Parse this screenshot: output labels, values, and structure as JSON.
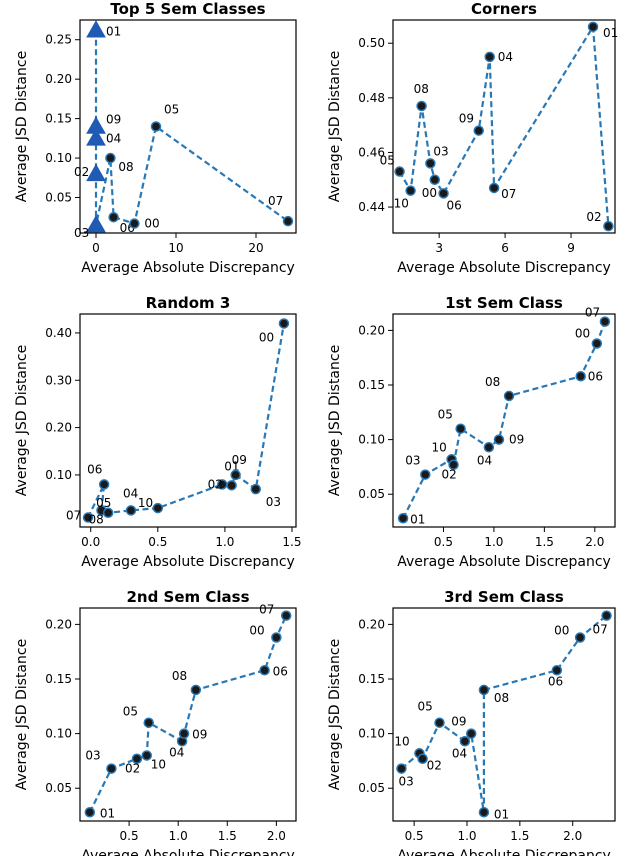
{
  "chart_data": [
    {
      "type": "line",
      "title": "Top 5 Sem Classes",
      "xlabel": "Average Absolute Discrepancy",
      "ylabel": "Average JSD Distance",
      "xlim": [
        -2,
        25
      ],
      "ylim": [
        0.005,
        0.275
      ],
      "xticks": [
        0,
        10,
        20
      ],
      "yticks": [
        0.05,
        0.1,
        0.15,
        0.2,
        0.25
      ],
      "ytick_labels": [
        "0.05",
        "0.10",
        "0.15",
        "0.20",
        "0.25"
      ],
      "points": [
        {
          "label": "01",
          "x": 0.0,
          "y": 0.262,
          "marker": "triangle"
        },
        {
          "label": "09",
          "x": 0.0,
          "y": 0.14,
          "marker": "triangle"
        },
        {
          "label": "04",
          "x": 0.0,
          "y": 0.125,
          "marker": "triangle"
        },
        {
          "label": "02",
          "x": 0.0,
          "y": 0.08,
          "marker": "triangle"
        },
        {
          "label": "03",
          "x": 0.0,
          "y": 0.015,
          "marker": "triangle"
        },
        {
          "label": "08",
          "x": 1.8,
          "y": 0.1,
          "marker": "circle"
        },
        {
          "label": "06",
          "x": 2.2,
          "y": 0.025,
          "marker": "circle"
        },
        {
          "label": "00",
          "x": 4.8,
          "y": 0.017,
          "marker": "circle"
        },
        {
          "label": "05",
          "x": 7.5,
          "y": 0.14,
          "marker": "circle"
        },
        {
          "label": "07",
          "x": 24.0,
          "y": 0.02,
          "marker": "circle"
        }
      ],
      "path": [
        "01",
        "09",
        "04",
        "02",
        "03",
        "08",
        "06",
        "00",
        "05",
        "07"
      ]
    },
    {
      "type": "line",
      "title": "Corners",
      "xlabel": "Average Absolute Discrepancy",
      "ylabel": "Average JSD Distance",
      "xlim": [
        0.9,
        11.0
      ],
      "ylim": [
        0.4305,
        0.5085
      ],
      "xticks": [
        3,
        6,
        9
      ],
      "yticks": [
        0.44,
        0.46,
        0.48,
        0.5
      ],
      "ytick_labels": [
        "0.44",
        "0.46",
        "0.48",
        "0.50"
      ],
      "points": [
        {
          "label": "05",
          "x": 1.2,
          "y": 0.453,
          "marker": "circle"
        },
        {
          "label": "10",
          "x": 1.7,
          "y": 0.446,
          "marker": "circle"
        },
        {
          "label": "08",
          "x": 2.2,
          "y": 0.477,
          "marker": "circle"
        },
        {
          "label": "03",
          "x": 2.6,
          "y": 0.456,
          "marker": "circle"
        },
        {
          "label": "00",
          "x": 2.8,
          "y": 0.45,
          "marker": "circle"
        },
        {
          "label": "06",
          "x": 3.2,
          "y": 0.445,
          "marker": "circle"
        },
        {
          "label": "09",
          "x": 4.8,
          "y": 0.468,
          "marker": "circle"
        },
        {
          "label": "04",
          "x": 5.3,
          "y": 0.495,
          "marker": "circle"
        },
        {
          "label": "07",
          "x": 5.5,
          "y": 0.447,
          "marker": "circle"
        },
        {
          "label": "01",
          "x": 10.0,
          "y": 0.506,
          "marker": "circle"
        },
        {
          "label": "02",
          "x": 10.7,
          "y": 0.433,
          "marker": "circle"
        }
      ],
      "path": [
        "05",
        "10",
        "08",
        "03",
        "00",
        "06",
        "09",
        "04",
        "07",
        "01",
        "02"
      ]
    },
    {
      "type": "line",
      "title": "Random 3",
      "xlabel": "Average Absolute Discrepancy",
      "ylabel": "Average JSD Distance",
      "xlim": [
        -0.08,
        1.53
      ],
      "ylim": [
        -0.01,
        0.44
      ],
      "xticks": [
        0.0,
        0.5,
        1.0,
        1.5
      ],
      "xtick_labels": [
        "0.0",
        "0.5",
        "1.0",
        "1.5"
      ],
      "yticks": [
        0.1,
        0.2,
        0.3,
        0.4
      ],
      "ytick_labels": [
        "0.10",
        "0.20",
        "0.30",
        "0.40"
      ],
      "points": [
        {
          "label": "07",
          "x": -0.02,
          "y": 0.01,
          "marker": "circle"
        },
        {
          "label": "06",
          "x": 0.1,
          "y": 0.08,
          "marker": "circle"
        },
        {
          "label": "08",
          "x": 0.08,
          "y": 0.025,
          "marker": "circle"
        },
        {
          "label": "05",
          "x": 0.13,
          "y": 0.02,
          "marker": "circle"
        },
        {
          "label": "04",
          "x": 0.3,
          "y": 0.025,
          "marker": "circle"
        },
        {
          "label": "10",
          "x": 0.5,
          "y": 0.03,
          "marker": "circle"
        },
        {
          "label": "01",
          "x": 0.98,
          "y": 0.08,
          "marker": "circle"
        },
        {
          "label": "02",
          "x": 1.05,
          "y": 0.078,
          "marker": "circle"
        },
        {
          "label": "09",
          "x": 1.08,
          "y": 0.1,
          "marker": "circle"
        },
        {
          "label": "03",
          "x": 1.23,
          "y": 0.07,
          "marker": "circle"
        },
        {
          "label": "00",
          "x": 1.44,
          "y": 0.42,
          "marker": "circle"
        }
      ],
      "path": [
        "07",
        "06",
        "08",
        "05",
        "04",
        "10",
        "01",
        "02",
        "09",
        "03",
        "00"
      ]
    },
    {
      "type": "line",
      "title": "1st Sem Class",
      "xlabel": "Average Absolute Discrepancy",
      "ylabel": "Average JSD Distance",
      "xlim": [
        0.0,
        2.2
      ],
      "ylim": [
        0.02,
        0.215
      ],
      "xticks": [
        0.5,
        1.0,
        1.5,
        2.0
      ],
      "xtick_labels": [
        "0.5",
        "1.0",
        "1.5",
        "2.0"
      ],
      "yticks": [
        0.05,
        0.1,
        0.15,
        0.2
      ],
      "ytick_labels": [
        "0.05",
        "0.10",
        "0.15",
        "0.20"
      ],
      "points": [
        {
          "label": "01",
          "x": 0.1,
          "y": 0.028,
          "marker": "circle"
        },
        {
          "label": "03",
          "x": 0.32,
          "y": 0.068,
          "marker": "circle"
        },
        {
          "label": "10",
          "x": 0.58,
          "y": 0.082,
          "marker": "circle"
        },
        {
          "label": "02",
          "x": 0.6,
          "y": 0.077,
          "marker": "circle"
        },
        {
          "label": "05",
          "x": 0.67,
          "y": 0.11,
          "marker": "circle"
        },
        {
          "label": "04",
          "x": 0.95,
          "y": 0.093,
          "marker": "circle"
        },
        {
          "label": "09",
          "x": 1.05,
          "y": 0.1,
          "marker": "circle"
        },
        {
          "label": "08",
          "x": 1.15,
          "y": 0.14,
          "marker": "circle"
        },
        {
          "label": "06",
          "x": 1.86,
          "y": 0.158,
          "marker": "circle"
        },
        {
          "label": "00",
          "x": 2.02,
          "y": 0.188,
          "marker": "circle"
        },
        {
          "label": "07",
          "x": 2.1,
          "y": 0.208,
          "marker": "circle"
        }
      ],
      "path": [
        "01",
        "03",
        "10",
        "02",
        "05",
        "04",
        "09",
        "08",
        "06",
        "00",
        "07"
      ]
    },
    {
      "type": "line",
      "title": "2nd Sem Class",
      "xlabel": "Average Absolute Discrepancy",
      "ylabel": "Average JSD Distance",
      "xlim": [
        0.0,
        2.2
      ],
      "ylim": [
        0.02,
        0.215
      ],
      "xticks": [
        0.5,
        1.0,
        1.5,
        2.0
      ],
      "xtick_labels": [
        "0.5",
        "1.0",
        "1.5",
        "2.0"
      ],
      "yticks": [
        0.05,
        0.1,
        0.15,
        0.2
      ],
      "ytick_labels": [
        "0.05",
        "0.10",
        "0.15",
        "0.20"
      ],
      "points": [
        {
          "label": "01",
          "x": 0.1,
          "y": 0.028,
          "marker": "circle"
        },
        {
          "label": "03",
          "x": 0.32,
          "y": 0.068,
          "marker": "circle"
        },
        {
          "label": "02",
          "x": 0.58,
          "y": 0.077,
          "marker": "circle"
        },
        {
          "label": "10",
          "x": 0.68,
          "y": 0.08,
          "marker": "circle"
        },
        {
          "label": "05",
          "x": 0.7,
          "y": 0.11,
          "marker": "circle"
        },
        {
          "label": "04",
          "x": 1.04,
          "y": 0.093,
          "marker": "circle"
        },
        {
          "label": "09",
          "x": 1.06,
          "y": 0.1,
          "marker": "circle"
        },
        {
          "label": "08",
          "x": 1.18,
          "y": 0.14,
          "marker": "circle"
        },
        {
          "label": "06",
          "x": 1.88,
          "y": 0.158,
          "marker": "circle"
        },
        {
          "label": "00",
          "x": 2.0,
          "y": 0.188,
          "marker": "circle"
        },
        {
          "label": "07",
          "x": 2.1,
          "y": 0.208,
          "marker": "circle"
        }
      ],
      "path": [
        "01",
        "03",
        "02",
        "10",
        "05",
        "04",
        "09",
        "08",
        "06",
        "00",
        "07"
      ]
    },
    {
      "type": "line",
      "title": "3rd Sem Class",
      "xlabel": "Average Absolute Discrepancy",
      "ylabel": "Average JSD Distance",
      "xlim": [
        0.3,
        2.4
      ],
      "ylim": [
        0.02,
        0.215
      ],
      "xticks": [
        0.5,
        1.0,
        1.5,
        2.0
      ],
      "xtick_labels": [
        "0.5",
        "1.0",
        "1.5",
        "2.0"
      ],
      "yticks": [
        0.05,
        0.1,
        0.15,
        0.2
      ],
      "ytick_labels": [
        "0.05",
        "0.10",
        "0.15",
        "0.20"
      ],
      "points": [
        {
          "label": "03",
          "x": 0.38,
          "y": 0.068,
          "marker": "circle"
        },
        {
          "label": "10",
          "x": 0.55,
          "y": 0.082,
          "marker": "circle"
        },
        {
          "label": "02",
          "x": 0.58,
          "y": 0.077,
          "marker": "circle"
        },
        {
          "label": "05",
          "x": 0.74,
          "y": 0.11,
          "marker": "circle"
        },
        {
          "label": "04",
          "x": 0.98,
          "y": 0.093,
          "marker": "circle"
        },
        {
          "label": "09",
          "x": 1.04,
          "y": 0.1,
          "marker": "circle"
        },
        {
          "label": "01",
          "x": 1.16,
          "y": 0.028,
          "marker": "circle"
        },
        {
          "label": "08",
          "x": 1.16,
          "y": 0.14,
          "marker": "circle"
        },
        {
          "label": "06",
          "x": 1.85,
          "y": 0.158,
          "marker": "circle"
        },
        {
          "label": "00",
          "x": 2.07,
          "y": 0.188,
          "marker": "circle"
        },
        {
          "label": "07",
          "x": 2.32,
          "y": 0.208,
          "marker": "circle"
        }
      ],
      "path": [
        "03",
        "10",
        "02",
        "05",
        "04",
        "09",
        "01",
        "08",
        "06",
        "00",
        "07"
      ]
    }
  ],
  "style": {
    "line_color": "#2878b5",
    "marker_fill": "#1a1a1a",
    "marker_edge": "#2878b5",
    "triangle_color": "#1f5bb4",
    "axis_color": "#000000"
  }
}
